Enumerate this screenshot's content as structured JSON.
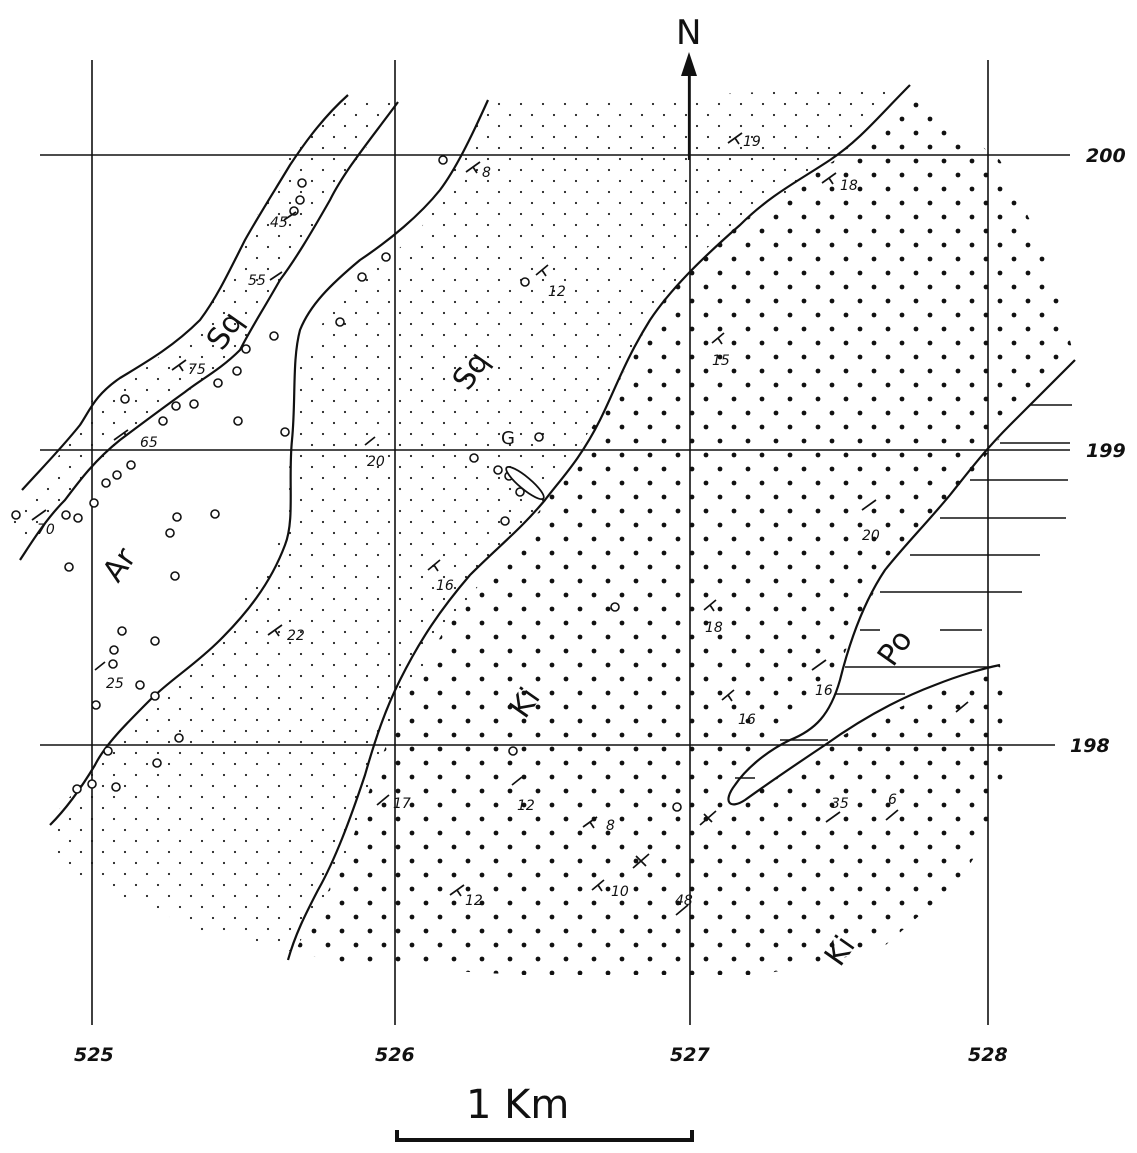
{
  "map": {
    "north_label": "N",
    "grid_x_labels": [
      "525",
      "526",
      "527",
      "528"
    ],
    "grid_y_labels": [
      "200",
      "199",
      "198"
    ],
    "scale_bar_label": "1 Km",
    "unit_labels": [
      "Sq",
      "Sq",
      "Ar",
      "Ki",
      "Ki",
      "Po"
    ],
    "locality_label": "G",
    "dip_values": [
      "19",
      "8",
      "18",
      "45",
      "55",
      "12",
      "15",
      "75",
      "65",
      "20",
      "70",
      "20",
      "16",
      "22",
      "18",
      "25",
      "16",
      "16",
      "17",
      "12",
      "8",
      "10",
      "12",
      "48",
      "35",
      "6"
    ],
    "colors": {
      "ink": "#111111",
      "paper": "#ffffff"
    }
  }
}
